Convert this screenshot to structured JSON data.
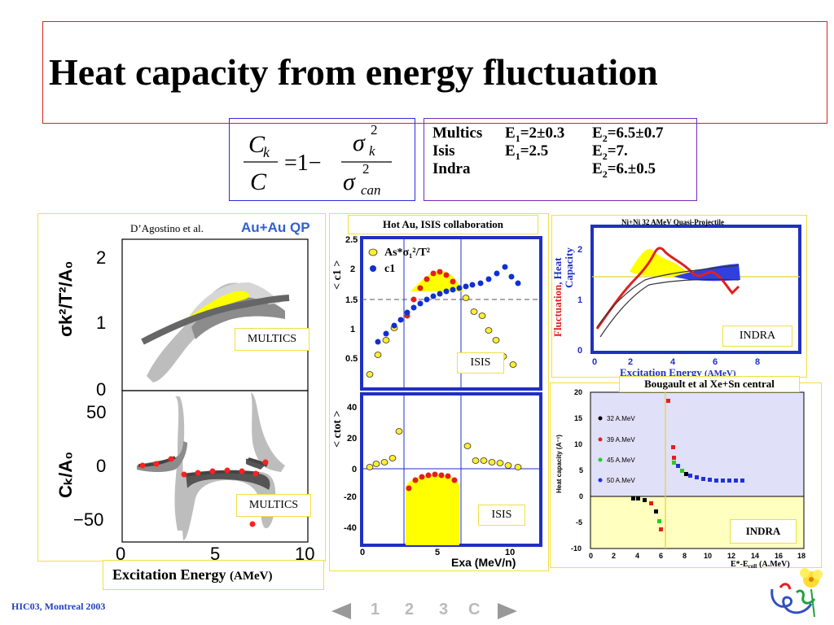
{
  "slide": {
    "title": "Heat capacity from energy fluctuation",
    "footer": "HIC03, Montreal 2003",
    "nav": {
      "items": [
        "1",
        "2",
        "3",
        "C"
      ]
    }
  },
  "formula": {
    "lhs_num": "C",
    "lhs_num_sub": "k",
    "lhs_den": "C",
    "equals_one_minus": "=1−",
    "rhs_num": "σ",
    "rhs_num_sub": "k",
    "rhs_num_sup": "2",
    "rhs_den": "σ",
    "rhs_den_sub": "can",
    "rhs_den_sup": "2"
  },
  "params": {
    "multics": {
      "name": "Multics",
      "e1": "E",
      "e1_sub": "1",
      "e1_val": "=2±0.3",
      "e2": "E",
      "e2_sub": "2",
      "e2_val": "=6.5±0.7"
    },
    "isis": {
      "name": "Isis",
      "e1": "E",
      "e1_sub": "1",
      "e1_val": "=2.5",
      "e2": "E",
      "e2_sub": "2",
      "e2_val": "=7."
    },
    "indra": {
      "name": "Indra",
      "e2": "E",
      "e2_sub": "2",
      "e2_val": "=6.±0.5"
    }
  },
  "panels": {
    "multics": {
      "author": "D’Agostino et al.",
      "system": "Au+Au QP",
      "ylabel_top": "σk²/T²/A₀",
      "ylabel_bot": "Cₖ/A₀",
      "top_ticks": [
        "2",
        "1",
        "0"
      ],
      "bot_ticks": [
        "50",
        "0",
        "−50"
      ],
      "x_ticks": [
        "0",
        "5",
        "10"
      ],
      "tag_top": "MULTICS",
      "tag_bot": "MULTICS",
      "xlabel": "Excitation Energy",
      "xlabel_unit": "(AMeV)"
    },
    "isis": {
      "header": "Hot Au, ISIS collaboration",
      "ylabel_top": "< c1 >",
      "ylabel_bot": "< ctot >",
      "top_ticks": [
        "2.5",
        "2",
        "1.5",
        "1",
        "0.5"
      ],
      "bot_ticks": [
        "40",
        "20",
        "0",
        "-20",
        "-40"
      ],
      "x_ticks": [
        "0",
        "5",
        "10"
      ],
      "legend_1": "As*σ₁²/T²",
      "legend_2": "c1",
      "tag_top": "ISIS",
      "tag_bot": "ISIS",
      "xlabel": "Exa (MeV/n)"
    },
    "indra_ni": {
      "header": "Ni+Ni 32 AMeV Quasi-Projectile",
      "ylabel_1": "Fluctuation",
      "ylabel_2": ", Heat",
      "ylabel_3": "Capacity",
      "y_ticks": [
        "2",
        "1",
        "0"
      ],
      "x_ticks": [
        "0",
        "2",
        "4",
        "6",
        "8"
      ],
      "tag": "INDRA",
      "xlabel": "Excitation Energy",
      "xlabel_unit": "(AMeV)"
    },
    "indra_xe": {
      "header": "Bougault et al Xe+Sn central",
      "ylabel": "Heat capacity (A⁻¹)",
      "y_ticks": [
        "20",
        "15",
        "10",
        "5",
        "0",
        "-5",
        "-10"
      ],
      "x_ticks": [
        "0",
        "2",
        "4",
        "6",
        "8",
        "10",
        "12",
        "14",
        "16",
        "18"
      ],
      "legend": [
        "32 A.MeV",
        "39 A.MeV",
        "45 A.MeV",
        "50 A.MeV"
      ],
      "tag": "INDRA",
      "xlabel": "E*-E",
      "xlabel_sub": "coll",
      "xlabel_unit": "(A.MeV)"
    }
  }
}
